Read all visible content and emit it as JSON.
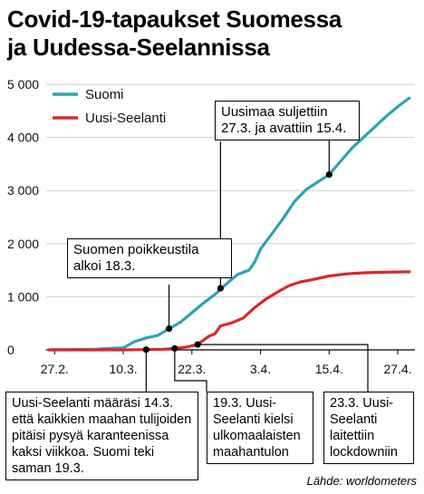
{
  "title": {
    "line1": "Covid-19-tapaukset Suomessa",
    "line2": "ja Uudessa-Seelannissa"
  },
  "source": "Lähde: worldometers",
  "colors": {
    "suomi": "#2ba3b8",
    "uusi_seelanti": "#d8292c",
    "grid": "#cfcfcf"
  },
  "chart_data": {
    "type": "line",
    "title": "Covid-19-tapaukset Suomessa ja Uudessa-Seelannissa",
    "xlabel": "",
    "ylabel": "",
    "ylim": [
      0,
      5000
    ],
    "yticks": [
      0,
      1000,
      2000,
      3000,
      4000,
      5000
    ],
    "ytick_labels": [
      "0",
      "1 000",
      "2 000",
      "3 000",
      "4 000",
      "5 000"
    ],
    "xlim": [
      "2020-02-26",
      "2020-04-30"
    ],
    "xticks": [
      "2020-02-27",
      "2020-03-10",
      "2020-03-22",
      "2020-04-03",
      "2020-04-15",
      "2020-04-27"
    ],
    "xtick_labels": [
      "27.2.",
      "10.3.",
      "22.3.",
      "3.4.",
      "15.4.",
      "27.4."
    ],
    "grid": true,
    "legend": "top-left",
    "series": [
      {
        "name": "Suomi",
        "x": [
          "2020-02-26",
          "2020-03-01",
          "2020-03-05",
          "2020-03-08",
          "2020-03-10",
          "2020-03-12",
          "2020-03-14",
          "2020-03-16",
          "2020-03-18",
          "2020-03-20",
          "2020-03-22",
          "2020-03-24",
          "2020-03-26",
          "2020-03-28",
          "2020-03-30",
          "2020-04-01",
          "2020-04-02",
          "2020-04-03",
          "2020-04-05",
          "2020-04-07",
          "2020-04-09",
          "2020-04-11",
          "2020-04-13",
          "2020-04-15",
          "2020-04-17",
          "2020-04-19",
          "2020-04-21",
          "2020-04-23",
          "2020-04-25",
          "2020-04-27",
          "2020-04-29"
        ],
        "values": [
          0,
          6,
          12,
          30,
          40,
          155,
          225,
          270,
          400,
          520,
          700,
          880,
          1040,
          1240,
          1420,
          1500,
          1660,
          1900,
          2190,
          2480,
          2800,
          3020,
          3160,
          3300,
          3550,
          3800,
          4000,
          4200,
          4400,
          4580,
          4740
        ]
      },
      {
        "name": "Uusi-Seelanti",
        "x": [
          "2020-02-26",
          "2020-03-10",
          "2020-03-14",
          "2020-03-17",
          "2020-03-19",
          "2020-03-21",
          "2020-03-23",
          "2020-03-25",
          "2020-03-26",
          "2020-03-27",
          "2020-03-29",
          "2020-03-31",
          "2020-04-02",
          "2020-04-04",
          "2020-04-06",
          "2020-04-08",
          "2020-04-10",
          "2020-04-12",
          "2020-04-15",
          "2020-04-18",
          "2020-04-21",
          "2020-04-24",
          "2020-04-29"
        ],
        "values": [
          0,
          0,
          5,
          12,
          28,
          52,
          100,
          260,
          300,
          450,
          510,
          600,
          800,
          960,
          1090,
          1210,
          1280,
          1320,
          1390,
          1430,
          1450,
          1460,
          1470
        ]
      }
    ],
    "annotations": [
      {
        "text": "Suomen poikkeustila alkoi 18.3.",
        "x": "2020-03-18",
        "y": 400
      },
      {
        "text": "Uusimaa suljettiin 27.3. ja avattiin 15.4.",
        "x": "2020-03-27",
        "y": 1160
      },
      {
        "text": "Uusimaa suljettiin 27.3. ja avattiin 15.4.",
        "x": "2020-04-15",
        "y": 3300
      },
      {
        "text": "Uusi-Seelanti määräsi 14.3. että kaikkien maahan tulijoiden pitäisi pysyä karanteenissa kaksi viikkoa. Suomi teki saman 19.3.",
        "x": "2020-03-14",
        "y": 5
      },
      {
        "text": "19.3. Uusi-Seelanti kielsi ulkomaalaisten maahantulon",
        "x": "2020-03-19",
        "y": 28
      },
      {
        "text": "23.3. Uusi-Seelanti laitettiin lockdowniin",
        "x": "2020-03-23",
        "y": 100
      }
    ]
  },
  "boxes": {
    "poikkeustila": "Suomen poikkeustila alkoi 18.3.",
    "uusimaa": "Uusimaa suljettiin 27.3. ja avattiin 15.4.",
    "karanteeni": "Uusi-Seelanti määräsi 14.3. että kaikkien maahan tulijoiden pitäisi pysyä karanteenissa kaksi viikkoa. Suomi teki saman 19.3.",
    "maahantulo": "19.3. Uusi-Seelanti kielsi ulkomaalaisten maahantulon",
    "lockdown": "23.3. Uusi-Seelanti laitettiin lockdowniin"
  }
}
